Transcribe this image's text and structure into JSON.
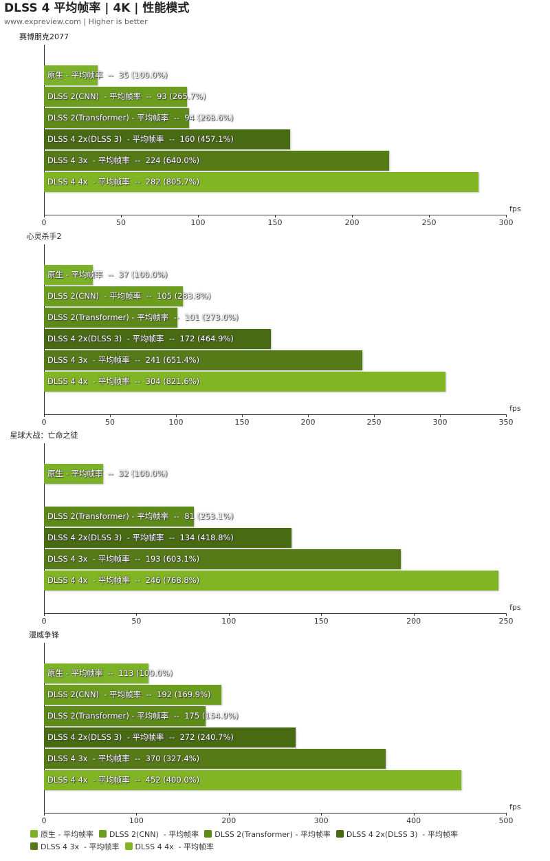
{
  "header": {
    "title": "DLSS 4 平均帧率 | 4K | 性能模式",
    "subtitle": "www.expreview.com | Higher is better"
  },
  "chart_data": {
    "type": "bar",
    "orientation": "horizontal",
    "unit": "fps",
    "series": [
      {
        "name": "原生 - 平均帧率",
        "color": "#7cb22a"
      },
      {
        "name": "DLSS 2(CNN)  - 平均帧率",
        "color": "#6d9d1f"
      },
      {
        "name": "DLSS 2(Transformer) - 平均帧率",
        "color": "#5e8a1a"
      },
      {
        "name": "DLSS 4 2x(DLSS 3)  - 平均帧率",
        "color": "#476a12"
      },
      {
        "name": "DLSS 4 3x  - 平均帧率",
        "color": "#577a18"
      },
      {
        "name": "DLSS 4 4x  - 平均帧率",
        "color": "#82b524"
      }
    ],
    "legend_position": "bottom",
    "charts": [
      {
        "title": "赛博朋克2077",
        "xlim": [
          0,
          300
        ],
        "ticks": [
          0,
          50,
          100,
          150,
          200,
          250,
          300
        ],
        "values": [
          35,
          93,
          94,
          160,
          224,
          282
        ],
        "percents": [
          "100.0%",
          "265.7%",
          "268.6%",
          "457.1%",
          "640.0%",
          "805.7%"
        ]
      },
      {
        "title": "心灵杀手2",
        "xlim": [
          0,
          350
        ],
        "ticks": [
          0,
          50,
          100,
          150,
          200,
          250,
          300,
          350
        ],
        "values": [
          37,
          105,
          101,
          172,
          241,
          304
        ],
        "percents": [
          "100.0%",
          "283.8%",
          "273.0%",
          "464.9%",
          "651.4%",
          "821.6%"
        ]
      },
      {
        "title": "星球大战：亡命之徒",
        "xlim": [
          0,
          250
        ],
        "ticks": [
          0,
          50,
          100,
          150,
          200,
          250
        ],
        "values": [
          32,
          null,
          81,
          134,
          193,
          246
        ],
        "percents": [
          "100.0%",
          null,
          "253.1%",
          "418.8%",
          "603.1%",
          "768.8%"
        ]
      },
      {
        "title": "漫威争锋",
        "xlim": [
          0,
          500
        ],
        "ticks": [
          0,
          100,
          200,
          300,
          400,
          500
        ],
        "values": [
          113,
          192,
          175,
          272,
          370,
          452
        ],
        "percents": [
          "100.0%",
          "169.9%",
          "154.9%",
          "240.7%",
          "327.4%",
          "400.0%"
        ]
      }
    ]
  }
}
